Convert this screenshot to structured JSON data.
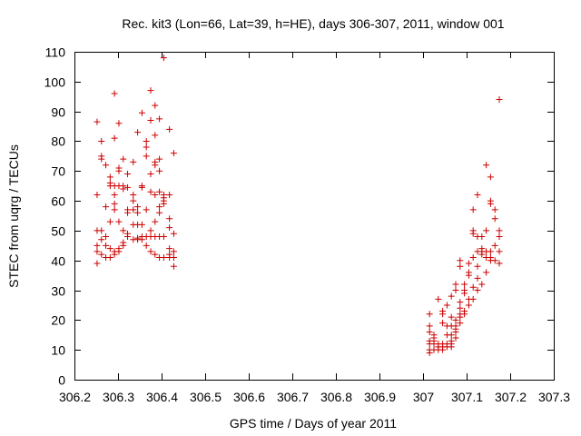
{
  "chart_data": {
    "type": "scatter",
    "title": "Rec. kit3 (Lon=66, Lat=39, h=HE), days 306-307, 2011, window 001",
    "xlabel": "GPS time / Days of year 2011",
    "ylabel": "STEC from uqrg / TECUs",
    "xlim": [
      306.2,
      307.3
    ],
    "ylim": [
      0,
      110
    ],
    "xticks": [
      306.2,
      306.3,
      306.4,
      306.5,
      306.6,
      306.7,
      306.8,
      306.9,
      307,
      307.1,
      307.2,
      307.3
    ],
    "xtick_labels": [
      "306.2",
      "306.3",
      "306.4",
      "306.5",
      "306.6",
      "306.7",
      "306.8",
      "306.9",
      "307",
      "307.1",
      "307.2",
      "307.3"
    ],
    "yticks": [
      0,
      10,
      20,
      30,
      40,
      50,
      60,
      70,
      80,
      90,
      100,
      110
    ],
    "ytick_labels": [
      "0",
      "10",
      "20",
      "30",
      "40",
      "50",
      "60",
      "70",
      "80",
      "90",
      "100",
      "110"
    ],
    "grid": false,
    "marker": "+",
    "marker_color": "#cc0000",
    "points": [
      [
        306.252,
        86.5
      ],
      [
        306.252,
        62
      ],
      [
        306.252,
        50
      ],
      [
        306.252,
        45
      ],
      [
        306.252,
        43
      ],
      [
        306.252,
        39
      ],
      [
        306.262,
        80
      ],
      [
        306.262,
        75
      ],
      [
        306.262,
        74
      ],
      [
        306.262,
        50
      ],
      [
        306.262,
        47
      ],
      [
        306.262,
        42
      ],
      [
        306.272,
        72
      ],
      [
        306.272,
        58
      ],
      [
        306.272,
        48
      ],
      [
        306.272,
        45
      ],
      [
        306.272,
        41
      ],
      [
        306.282,
        68
      ],
      [
        306.282,
        66
      ],
      [
        306.282,
        65
      ],
      [
        306.282,
        53
      ],
      [
        306.282,
        44
      ],
      [
        306.282,
        41
      ],
      [
        306.292,
        96
      ],
      [
        306.292,
        81
      ],
      [
        306.292,
        65
      ],
      [
        306.292,
        62
      ],
      [
        306.292,
        59
      ],
      [
        306.292,
        57
      ],
      [
        306.292,
        43
      ],
      [
        306.292,
        42
      ],
      [
        306.302,
        86
      ],
      [
        306.302,
        71
      ],
      [
        306.302,
        70
      ],
      [
        306.302,
        65
      ],
      [
        306.302,
        53
      ],
      [
        306.302,
        44
      ],
      [
        306.302,
        43
      ],
      [
        306.312,
        74
      ],
      [
        306.312,
        65
      ],
      [
        306.312,
        64
      ],
      [
        306.312,
        50
      ],
      [
        306.312,
        46
      ],
      [
        306.312,
        45
      ],
      [
        306.322,
        69
      ],
      [
        306.322,
        64.5
      ],
      [
        306.322,
        57
      ],
      [
        306.322,
        56
      ],
      [
        306.322,
        49
      ],
      [
        306.322,
        48
      ],
      [
        306.335,
        73
      ],
      [
        306.335,
        62
      ],
      [
        306.335,
        60
      ],
      [
        306.335,
        57
      ],
      [
        306.335,
        52
      ],
      [
        306.335,
        47
      ],
      [
        306.345,
        83
      ],
      [
        306.345,
        58
      ],
      [
        306.345,
        56
      ],
      [
        306.345,
        52
      ],
      [
        306.345,
        47.5
      ],
      [
        306.345,
        47
      ],
      [
        306.355,
        89.5
      ],
      [
        306.355,
        65
      ],
      [
        306.355,
        64.5
      ],
      [
        306.355,
        52
      ],
      [
        306.355,
        48
      ],
      [
        306.355,
        47
      ],
      [
        306.365,
        80
      ],
      [
        306.365,
        78
      ],
      [
        306.365,
        75
      ],
      [
        306.365,
        57
      ],
      [
        306.365,
        48
      ],
      [
        306.365,
        45
      ],
      [
        306.375,
        97
      ],
      [
        306.375,
        87
      ],
      [
        306.375,
        69
      ],
      [
        306.375,
        63
      ],
      [
        306.375,
        50
      ],
      [
        306.375,
        48
      ],
      [
        306.375,
        43
      ],
      [
        306.385,
        92
      ],
      [
        306.385,
        82
      ],
      [
        306.385,
        73
      ],
      [
        306.385,
        72
      ],
      [
        306.385,
        62
      ],
      [
        306.385,
        53
      ],
      [
        306.385,
        48
      ],
      [
        306.385,
        42
      ],
      [
        306.395,
        87.5
      ],
      [
        306.395,
        74
      ],
      [
        306.395,
        70
      ],
      [
        306.395,
        63
      ],
      [
        306.395,
        58
      ],
      [
        306.395,
        56
      ],
      [
        306.395,
        48
      ],
      [
        306.395,
        41
      ],
      [
        306.405,
        108
      ],
      [
        306.405,
        62
      ],
      [
        306.405,
        61
      ],
      [
        306.405,
        60
      ],
      [
        306.405,
        59
      ],
      [
        306.405,
        48
      ],
      [
        306.405,
        41
      ],
      [
        306.418,
        84
      ],
      [
        306.418,
        62
      ],
      [
        306.418,
        54
      ],
      [
        306.418,
        51
      ],
      [
        306.418,
        44
      ],
      [
        306.418,
        42
      ],
      [
        306.418,
        41
      ],
      [
        306.428,
        76
      ],
      [
        306.428,
        49
      ],
      [
        306.428,
        43
      ],
      [
        306.428,
        41
      ],
      [
        306.428,
        38
      ],
      [
        307.015,
        22
      ],
      [
        307.015,
        18
      ],
      [
        307.015,
        16
      ],
      [
        307.015,
        13
      ],
      [
        307.015,
        12
      ],
      [
        307.015,
        10
      ],
      [
        307.015,
        9
      ],
      [
        307.025,
        15
      ],
      [
        307.025,
        14
      ],
      [
        307.025,
        13
      ],
      [
        307.025,
        12
      ],
      [
        307.025,
        10
      ],
      [
        307.035,
        27
      ],
      [
        307.035,
        12
      ],
      [
        307.035,
        11
      ],
      [
        307.035,
        10
      ],
      [
        307.045,
        23
      ],
      [
        307.045,
        22
      ],
      [
        307.045,
        19
      ],
      [
        307.045,
        12
      ],
      [
        307.045,
        11
      ],
      [
        307.045,
        10
      ],
      [
        307.055,
        25
      ],
      [
        307.055,
        18
      ],
      [
        307.055,
        15
      ],
      [
        307.055,
        12
      ],
      [
        307.055,
        11
      ],
      [
        307.065,
        28
      ],
      [
        307.065,
        21
      ],
      [
        307.065,
        18
      ],
      [
        307.065,
        15
      ],
      [
        307.065,
        13
      ],
      [
        307.065,
        12
      ],
      [
        307.065,
        11
      ],
      [
        307.075,
        32
      ],
      [
        307.075,
        30
      ],
      [
        307.075,
        20
      ],
      [
        307.075,
        18
      ],
      [
        307.075,
        17
      ],
      [
        307.075,
        16
      ],
      [
        307.075,
        14
      ],
      [
        307.085,
        40
      ],
      [
        307.085,
        38
      ],
      [
        307.085,
        26
      ],
      [
        307.085,
        24
      ],
      [
        307.085,
        22
      ],
      [
        307.085,
        21
      ],
      [
        307.085,
        19
      ],
      [
        307.095,
        32
      ],
      [
        307.095,
        30
      ],
      [
        307.095,
        29
      ],
      [
        307.095,
        23
      ],
      [
        307.095,
        22
      ],
      [
        307.105,
        39
      ],
      [
        307.105,
        36
      ],
      [
        307.105,
        35
      ],
      [
        307.105,
        27
      ],
      [
        307.105,
        25
      ],
      [
        307.115,
        57
      ],
      [
        307.115,
        50
      ],
      [
        307.115,
        49
      ],
      [
        307.115,
        41
      ],
      [
        307.115,
        31
      ],
      [
        307.115,
        27
      ],
      [
        307.125,
        62
      ],
      [
        307.125,
        48
      ],
      [
        307.125,
        43
      ],
      [
        307.125,
        38
      ],
      [
        307.125,
        34
      ],
      [
        307.125,
        30
      ],
      [
        307.135,
        48
      ],
      [
        307.135,
        44
      ],
      [
        307.135,
        43
      ],
      [
        307.135,
        42
      ],
      [
        307.135,
        32
      ],
      [
        307.145,
        72
      ],
      [
        307.145,
        50
      ],
      [
        307.145,
        43
      ],
      [
        307.145,
        41
      ],
      [
        307.145,
        36
      ],
      [
        307.155,
        68
      ],
      [
        307.155,
        60
      ],
      [
        307.155,
        59
      ],
      [
        307.155,
        43
      ],
      [
        307.155,
        41
      ],
      [
        307.155,
        40
      ],
      [
        307.165,
        57
      ],
      [
        307.165,
        54
      ],
      [
        307.165,
        45
      ],
      [
        307.165,
        40
      ],
      [
        307.175,
        94
      ],
      [
        307.175,
        50
      ],
      [
        307.175,
        48
      ],
      [
        307.175,
        43
      ],
      [
        307.175,
        39
      ]
    ]
  }
}
